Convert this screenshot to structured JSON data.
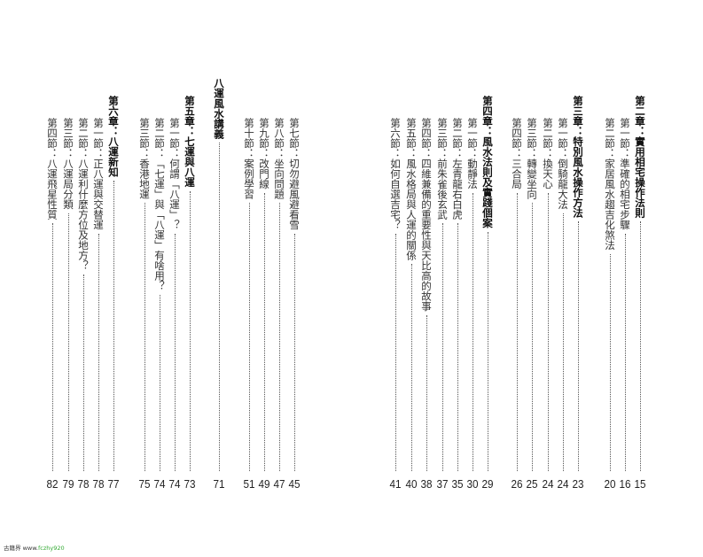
{
  "toc": [
    {
      "label": "第二章：實用相宅操作法則",
      "page": "15",
      "kind": "chapter"
    },
    {
      "label": "第一節：準確的相宅步驟",
      "page": "16",
      "kind": "section"
    },
    {
      "label": "第二節：家居風水趨吉化煞法",
      "page": "20",
      "kind": "section"
    },
    {
      "label": "第三章：特別風水操作方法",
      "page": "23",
      "kind": "chapter"
    },
    {
      "label": "第一節：倒騎龍大法",
      "page": "24",
      "kind": "section"
    },
    {
      "label": "第二節：換天心",
      "page": "24",
      "kind": "section"
    },
    {
      "label": "第三節：轉變坐向",
      "page": "25",
      "kind": "section"
    },
    {
      "label": "第四節：三合局",
      "page": "26",
      "kind": "section"
    },
    {
      "label": "第四章：風水法則及實踐個案",
      "page": "29",
      "kind": "chapter"
    },
    {
      "label": "第一節：動靜法",
      "page": "30",
      "kind": "section"
    },
    {
      "label": "第二節：左青龍右白虎",
      "page": "35",
      "kind": "section"
    },
    {
      "label": "第三節：前朱雀後玄武",
      "page": "37",
      "kind": "section"
    },
    {
      "label": "第四節：四維兼備的重要性與天比高的故事",
      "page": "38",
      "kind": "section"
    },
    {
      "label": "第五節：風水格局與人運的關係",
      "page": "40",
      "kind": "section"
    },
    {
      "label": "第六節：如何自選吉宅？",
      "page": "41",
      "kind": "section"
    },
    {
      "label": "第七節：切勿避風避看雪",
      "page": "45",
      "kind": "section"
    },
    {
      "label": "第八節：坐向問題",
      "page": "47",
      "kind": "section"
    },
    {
      "label": "第九節：改門線",
      "page": "49",
      "kind": "section"
    },
    {
      "label": "第十節：案例學習",
      "page": "51",
      "kind": "section"
    },
    {
      "label": "八運風水講義",
      "page": "71",
      "kind": "part"
    },
    {
      "label": "第五章：七運與八運",
      "page": "73",
      "kind": "chapter"
    },
    {
      "label": "第一節：何謂「八運」？",
      "page": "74",
      "kind": "section"
    },
    {
      "label": "第二節：「七運」與「八運」有啥用？",
      "page": "74",
      "kind": "section"
    },
    {
      "label": "第三節：香港地運",
      "page": "75",
      "kind": "section"
    },
    {
      "label": "第六章：八運新知",
      "page": "77",
      "kind": "chapter"
    },
    {
      "label": "第一節：正八運與交替運",
      "page": "78",
      "kind": "section"
    },
    {
      "label": "第二節：八運利什麼方位及地方？",
      "page": "78",
      "kind": "section"
    },
    {
      "label": "第三節：八運局分類",
      "page": "79",
      "kind": "section"
    },
    {
      "label": "第四節：八運飛星性質",
      "page": "82",
      "kind": "section"
    }
  ],
  "watermark": {
    "site_name": "古籍界",
    "url_prefix": "www.",
    "url_main": "fczhy920",
    ".com": ".com"
  }
}
